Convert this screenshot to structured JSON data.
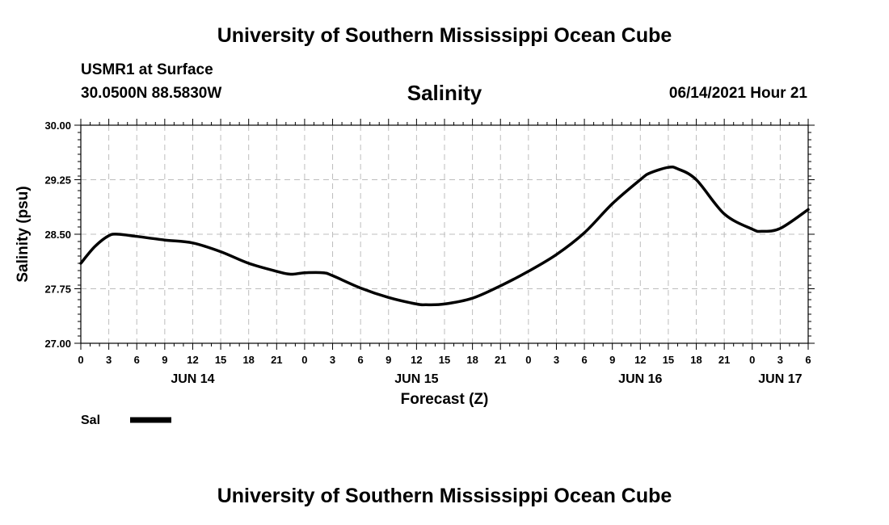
{
  "header": {
    "title": "University of Southern Mississippi Ocean Cube",
    "station": "USMR1 at Surface",
    "coords": "30.0500N  88.5830W",
    "datetime": "06/14/2021 Hour 21"
  },
  "footer": {
    "title": "University of Southern Mississippi Ocean Cube"
  },
  "chart_data": {
    "type": "line",
    "title": "Salinity",
    "xlabel": "Forecast (Z)",
    "ylabel": "Salinity (psu)",
    "ylim": [
      27.0,
      30.0
    ],
    "xlim_hours": [
      0,
      78
    ],
    "y_ticks": [
      "27.00",
      "27.75",
      "28.50",
      "29.25",
      "30.00"
    ],
    "x_tick_labels": [
      "0",
      "3",
      "6",
      "9",
      "12",
      "15",
      "18",
      "21",
      "0",
      "3",
      "6",
      "9",
      "12",
      "15",
      "18",
      "21",
      "0",
      "3",
      "6",
      "9",
      "12",
      "15",
      "18",
      "21",
      "0",
      "3",
      "6"
    ],
    "day_labels": [
      {
        "label": "JUN 14",
        "hour": 12
      },
      {
        "label": "JUN 15",
        "hour": 36
      },
      {
        "label": "JUN 16",
        "hour": 60
      },
      {
        "label": "JUN 17",
        "hour": 75
      }
    ],
    "grid": true,
    "legend": "bottom-left",
    "line_color": "#000000",
    "series": [
      {
        "name": "Sal",
        "x_hours": [
          0,
          1.5,
          3,
          4,
          6,
          9,
          12,
          15,
          18,
          21,
          22.5,
          24,
          26,
          27,
          30,
          33,
          36,
          37,
          39,
          42,
          45,
          48,
          51,
          54,
          57,
          60,
          61,
          63,
          64,
          66,
          69,
          72,
          73,
          75,
          78
        ],
        "values": [
          28.1,
          28.33,
          28.48,
          28.5,
          28.47,
          28.42,
          28.38,
          28.26,
          28.1,
          27.99,
          27.95,
          27.97,
          27.97,
          27.93,
          27.76,
          27.63,
          27.54,
          27.53,
          27.54,
          27.62,
          27.79,
          27.99,
          28.22,
          28.52,
          28.92,
          29.25,
          29.34,
          29.42,
          29.4,
          29.25,
          28.78,
          28.57,
          28.54,
          28.58,
          28.84
        ]
      }
    ]
  }
}
